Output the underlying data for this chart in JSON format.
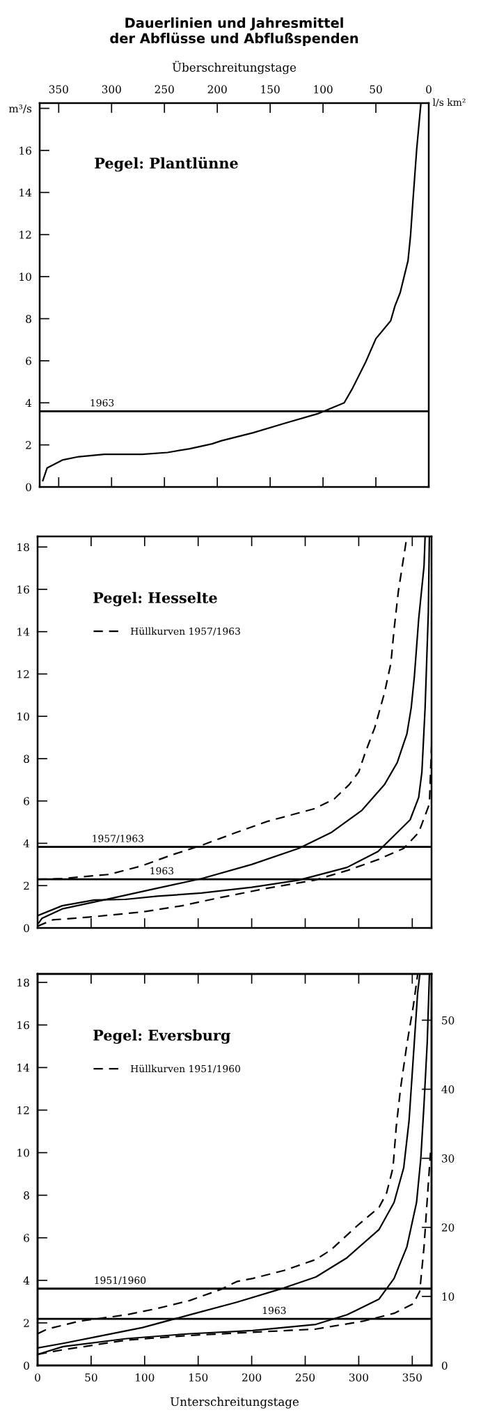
{
  "chart_data": [
    {
      "type": "line",
      "title": "Dauerlinien und Jahresmittel\nder Abflüsse und Abflußspenden",
      "xlabel": "Überschreitungstage",
      "annotations": [
        "Pegel: Plantlünne",
        "l/s km²",
        {
          "text": "1963",
          "x": 309,
          "y": 3.6
        }
      ],
      "xlim": [
        368,
        0
      ],
      "xticks": [
        350,
        300,
        250,
        200,
        150,
        100,
        50,
        0
      ],
      "ylim": [
        0,
        18.25
      ],
      "yticks": [
        0,
        2,
        4,
        6,
        8,
        10,
        12,
        14,
        16,
        {
          "value": 18,
          "label": "m³/s"
        }
      ],
      "series": [
        {
          "color": "#000000",
          "line_style": "solid",
          "x": [
            365,
            361,
            346,
            331,
            307,
            271,
            247,
            226,
            205,
            196,
            166,
            136,
            105,
            90,
            80,
            72,
            60,
            50,
            36,
            32,
            27,
            19.6,
            17.2,
            15.1,
            11.4,
            7.5
          ],
          "values": [
            0.3,
            0.9,
            1.29,
            1.44,
            1.55,
            1.55,
            1.64,
            1.82,
            2.05,
            2.2,
            2.58,
            3.03,
            3.48,
            3.79,
            4.0,
            4.7,
            5.9,
            7.05,
            7.9,
            8.6,
            9.24,
            10.76,
            11.97,
            13.5,
            16.06,
            18.2
          ]
        }
      ],
      "ref_lines": [
        {
          "axis": "y",
          "value": 3.6,
          "color": "#000000"
        }
      ]
    },
    {
      "type": "line",
      "annotations": [
        "Pegel: Hesselte",
        {
          "text": "1957/1963",
          "x": 75,
          "y": 3.83
        },
        {
          "text": "1963",
          "x": 116,
          "y": 2.3
        }
      ],
      "legend": "top left",
      "tick_labels": "y",
      "xlim": [
        0,
        368
      ],
      "xticks": [
        {
          "value": 50,
          "label": null
        },
        {
          "value": 100,
          "label": null
        },
        {
          "value": 150,
          "label": null
        },
        {
          "value": 200,
          "label": null
        },
        {
          "value": 250,
          "label": null
        },
        {
          "value": 300,
          "label": null
        },
        {
          "value": 350,
          "label": null
        }
      ],
      "ylim": [
        0,
        18.5
      ],
      "yticks": [
        0,
        2,
        4,
        6,
        8,
        10,
        12,
        14,
        16,
        18
      ],
      "series": [
        {
          "name": "Hüllkurven 1957/1963",
          "color": "#000000",
          "line_style": "dashed",
          "x": [
            0,
            23,
            67,
            97,
            126,
            153,
            185,
            215,
            259,
            277,
            291,
            300,
            306,
            315,
            324,
            330,
            333,
            337,
            345
          ],
          "values": [
            2.3,
            2.33,
            2.53,
            2.93,
            3.46,
            3.9,
            4.5,
            5.04,
            5.64,
            6.09,
            6.77,
            7.37,
            8.27,
            9.47,
            11.1,
            12.5,
            14.1,
            15.9,
            18.5
          ]
        },
        {
          "color": "#000000",
          "line_style": "solid",
          "x": [
            1,
            4,
            23,
            67,
            112,
            153,
            200,
            244,
            274,
            303,
            324,
            336,
            345,
            349,
            352,
            356,
            361,
            362
          ],
          "values": [
            0.23,
            0.45,
            0.9,
            1.38,
            1.88,
            2.33,
            3.0,
            3.76,
            4.5,
            5.56,
            6.77,
            7.82,
            9.17,
            10.4,
            11.9,
            14.6,
            17.1,
            18.5
          ]
        },
        {
          "color": "#000000",
          "line_style": "solid",
          "x": [
            1,
            23,
            53,
            82,
            112,
            153,
            200,
            244,
            289,
            318,
            348,
            356,
            359,
            362,
            365,
            366
          ],
          "values": [
            0.6,
            1.05,
            1.32,
            1.35,
            1.5,
            1.65,
            1.92,
            2.26,
            2.86,
            3.61,
            5.11,
            6.17,
            7.37,
            10.4,
            14.9,
            18.5
          ]
        },
        {
          "color": "#000000",
          "line_style": "dashed",
          "x": [
            0,
            14,
            52,
            97,
            135,
            170,
            215,
            259,
            289,
            318,
            342,
            356,
            366,
            368
          ],
          "values": [
            0.08,
            0.38,
            0.53,
            0.75,
            1.05,
            1.43,
            1.88,
            2.26,
            2.71,
            3.23,
            3.76,
            4.51,
            5.86,
            8.6
          ]
        }
      ],
      "ref_lines": [
        {
          "axis": "y",
          "value": 3.83,
          "color": "#000000"
        },
        {
          "axis": "y",
          "value": 2.3,
          "color": "#000000"
        }
      ]
    },
    {
      "type": "line",
      "xlabel": "Unterschreitungstage",
      "annotations": [
        "Pegel: Eversburg",
        {
          "text": "1951/1960",
          "x": 77,
          "y": 3.61
        },
        {
          "text": "1963",
          "x": 221,
          "y": 2.19
        }
      ],
      "legend": "top left",
      "xlim": [
        0,
        368
      ],
      "xticks": [
        0,
        50,
        100,
        150,
        200,
        250,
        300,
        350
      ],
      "ylim": [
        0,
        18.4
      ],
      "yticks": [
        0,
        2,
        4,
        6,
        8,
        10,
        12,
        14,
        16,
        18
      ],
      "y2lim": [
        0,
        56.7
      ],
      "y2ticks": [
        0,
        10,
        20,
        30,
        40,
        50
      ],
      "series": [
        {
          "name": "Hüllkurven 1951/1960",
          "color": "#000000",
          "line_style": "dashed",
          "x": [
            0,
            9,
            39,
            83,
            112,
            142,
            171,
            186,
            201,
            230,
            260,
            274,
            298,
            319,
            326,
            332,
            335,
            339,
            345,
            351,
            355
          ],
          "values": [
            1.49,
            1.71,
            2.08,
            2.38,
            2.68,
            3.05,
            3.57,
            3.94,
            4.09,
            4.46,
            4.98,
            5.43,
            6.54,
            7.43,
            8.1,
            9.29,
            11.2,
            13.0,
            15.1,
            16.9,
            18.36
          ]
        },
        {
          "color": "#000000",
          "line_style": "solid",
          "x": [
            0,
            24,
            54,
            98,
            142,
            186,
            230,
            260,
            289,
            319,
            333,
            342,
            347,
            351,
            355,
            357
          ],
          "values": [
            0.82,
            1.04,
            1.34,
            1.78,
            2.38,
            2.97,
            3.64,
            4.16,
            5.06,
            6.39,
            7.66,
            9.29,
            11.5,
            14.5,
            17.5,
            18.36
          ]
        },
        {
          "color": "#000000",
          "line_style": "solid",
          "x": [
            0,
            24,
            83,
            142,
            201,
            260,
            289,
            319,
            333,
            345,
            354,
            358,
            361,
            364,
            366
          ],
          "values": [
            0.52,
            0.89,
            1.26,
            1.49,
            1.64,
            1.93,
            2.38,
            3.12,
            4.09,
            5.58,
            7.66,
            9.74,
            12.3,
            15.2,
            18.36
          ]
        },
        {
          "color": "#000000",
          "line_style": "dashed",
          "x": [
            0,
            24,
            83,
            142,
            201,
            260,
            304,
            333,
            351,
            357,
            361,
            364,
            367
          ],
          "values": [
            0.52,
            0.74,
            1.19,
            1.41,
            1.56,
            1.71,
            2.08,
            2.45,
            2.9,
            3.49,
            5.58,
            7.81,
            10.0
          ]
        }
      ],
      "ref_lines": [
        {
          "axis": "y",
          "value": 3.61,
          "color": "#000000"
        },
        {
          "axis": "y",
          "value": 2.19,
          "color": "#000000"
        }
      ]
    }
  ]
}
